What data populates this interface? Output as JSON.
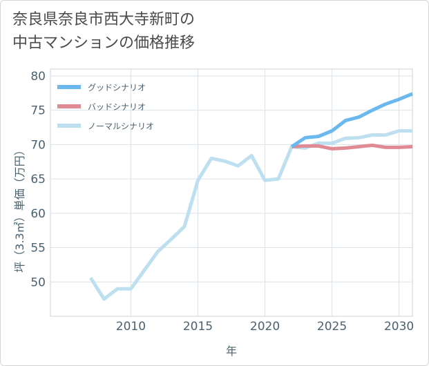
{
  "title_line1": "奈良県奈良市西大寺新町の",
  "title_line2": "中古マンションの価格推移",
  "chart_data": {
    "type": "line",
    "xlabel": "年",
    "ylabel": "坪（3.3㎡）単価（万円）",
    "xlim": [
      2004,
      2031
    ],
    "ylim": [
      45,
      81
    ],
    "x_ticks": [
      2010,
      2015,
      2020,
      2025,
      2030
    ],
    "y_ticks": [
      50,
      55,
      60,
      65,
      70,
      75,
      80
    ],
    "grid": true,
    "legend_position": "top-left",
    "series": [
      {
        "name": "グッドシナリオ",
        "color": "#6bb8ee",
        "x": [
          2022,
          2023,
          2024,
          2025,
          2026,
          2027,
          2028,
          2029,
          2030,
          2031
        ],
        "values": [
          69.7,
          71.0,
          71.2,
          72.0,
          73.5,
          74.0,
          75.0,
          75.9,
          76.6,
          77.4
        ]
      },
      {
        "name": "バッドシナリオ",
        "color": "#e08a94",
        "x": [
          2022,
          2023,
          2024,
          2025,
          2026,
          2027,
          2028,
          2029,
          2030,
          2031
        ],
        "values": [
          69.7,
          69.8,
          69.8,
          69.4,
          69.5,
          69.7,
          69.9,
          69.6,
          69.6,
          69.7
        ]
      },
      {
        "name": "ノーマルシナリオ",
        "color": "#bddff0",
        "x": [
          2007,
          2008,
          2009,
          2010,
          2011,
          2012,
          2013,
          2014,
          2015,
          2016,
          2017,
          2018,
          2019,
          2020,
          2021,
          2022,
          2023,
          2024,
          2025,
          2026,
          2027,
          2028,
          2029,
          2030,
          2031
        ],
        "values": [
          50.6,
          47.5,
          49.0,
          49.0,
          51.7,
          54.4,
          56.2,
          58.1,
          64.8,
          68.0,
          67.6,
          66.9,
          68.4,
          64.8,
          65.0,
          69.7,
          69.5,
          70.2,
          70.2,
          70.9,
          71.0,
          71.4,
          71.4,
          72.0,
          72.0
        ]
      }
    ]
  }
}
